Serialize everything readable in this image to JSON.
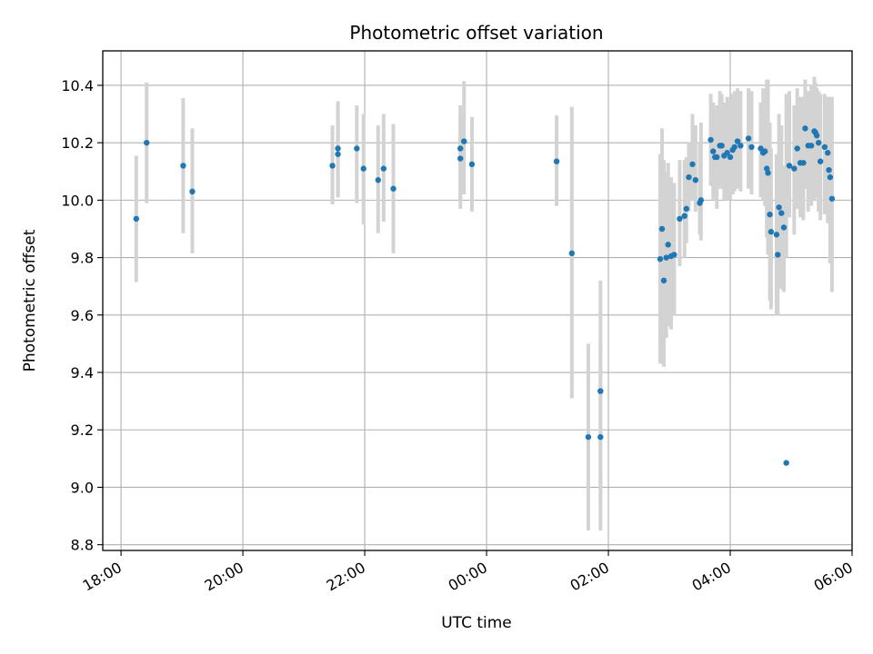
{
  "chart_data": {
    "type": "scatter",
    "title": "Photometric offset variation",
    "xlabel": "UTC time",
    "ylabel": "Photometric offset",
    "x_axis": {
      "kind": "time",
      "range_hours": [
        17.7,
        30.0
      ],
      "ticks_hours": [
        18,
        20,
        22,
        24,
        26,
        28,
        30
      ],
      "tick_labels": [
        "18:00",
        "20:00",
        "22:00",
        "00:00",
        "02:00",
        "04:00",
        "06:00"
      ],
      "tick_label_rotation_deg": 30
    },
    "y_axis": {
      "range": [
        8.78,
        10.52
      ],
      "ticks": [
        8.8,
        9.0,
        9.2,
        9.4,
        9.6,
        9.8,
        10.0,
        10.2,
        10.4
      ],
      "tick_labels": [
        "8.8",
        "9.0",
        "9.2",
        "9.4",
        "9.6",
        "9.8",
        "10.0",
        "10.2",
        "10.4"
      ]
    },
    "grid": true,
    "legend": "none",
    "colors": {
      "marker": "#1f77b4",
      "errorbar": "#d3d3d3",
      "grid": "#b0b0b0"
    },
    "series": [
      {
        "x_hours": [
          18.25,
          18.42,
          19.02,
          19.17,
          21.47,
          21.56,
          21.56,
          21.87,
          21.98,
          22.22,
          22.31,
          22.47,
          23.57,
          23.57,
          23.63,
          23.76,
          25.15,
          25.4,
          25.67,
          25.87,
          25.87,
          26.85,
          26.88,
          26.91,
          26.95,
          26.98,
          27.03,
          27.08,
          27.17,
          27.25,
          27.28,
          27.32,
          27.38,
          27.43,
          27.5,
          27.52,
          27.68,
          27.72,
          27.75,
          27.78,
          27.83,
          27.86,
          27.9,
          27.95,
          28.0,
          28.04,
          28.07,
          28.12,
          28.17,
          28.3,
          28.35,
          28.5,
          28.54,
          28.57,
          28.6,
          28.62,
          28.65,
          28.67,
          28.76,
          28.78,
          28.8,
          28.84,
          28.88,
          28.92,
          28.97,
          29.05,
          29.1,
          29.15,
          29.2,
          29.23,
          29.28,
          29.33,
          29.38,
          29.4,
          29.42,
          29.45,
          29.48,
          29.55,
          29.6,
          29.62,
          29.64,
          29.67
        ],
        "y": [
          9.935,
          10.2,
          10.12,
          10.03,
          10.12,
          10.16,
          10.18,
          10.18,
          10.11,
          10.07,
          10.11,
          10.04,
          10.145,
          10.18,
          10.205,
          10.125,
          10.135,
          9.815,
          9.175,
          9.175,
          9.335,
          9.795,
          9.9,
          9.72,
          9.8,
          9.845,
          9.805,
          9.81,
          9.935,
          9.945,
          9.97,
          10.08,
          10.125,
          10.07,
          9.99,
          10.0,
          10.21,
          10.17,
          10.15,
          10.15,
          10.19,
          10.19,
          10.155,
          10.165,
          10.15,
          10.175,
          10.185,
          10.205,
          10.19,
          10.215,
          10.185,
          10.18,
          10.165,
          10.17,
          10.11,
          10.095,
          9.95,
          9.89,
          9.88,
          9.81,
          9.975,
          9.955,
          9.905,
          9.085,
          10.12,
          10.11,
          10.18,
          10.13,
          10.13,
          10.25,
          10.19,
          10.19,
          10.24,
          10.235,
          10.225,
          10.2,
          10.135,
          10.185,
          10.165,
          10.105,
          10.08,
          10.005
        ],
        "err_low": [
          9.715,
          9.99,
          9.885,
          9.815,
          9.985,
          10.01,
          10.01,
          9.99,
          9.915,
          9.885,
          9.925,
          9.815,
          9.97,
          10.0,
          10.02,
          9.96,
          9.98,
          9.31,
          8.85,
          8.85,
          8.95,
          9.43,
          9.43,
          9.42,
          9.52,
          9.56,
          9.55,
          9.6,
          9.77,
          9.8,
          9.85,
          9.96,
          10.0,
          9.96,
          9.88,
          9.86,
          10.05,
          10.0,
          10.0,
          9.97,
          10.04,
          10.04,
          10.0,
          10.0,
          10.0,
          10.02,
          10.03,
          10.04,
          10.03,
          10.04,
          10.02,
          10.01,
          10.0,
          9.98,
          9.87,
          9.81,
          9.65,
          9.62,
          9.6,
          9.6,
          9.7,
          9.69,
          9.68,
          9.8,
          9.94,
          9.88,
          9.97,
          9.94,
          9.93,
          10.04,
          9.96,
          9.98,
          10.0,
          10.02,
          10.01,
          9.96,
          9.93,
          9.95,
          9.92,
          9.92,
          9.78,
          9.68
        ],
        "err_high": [
          10.155,
          10.41,
          10.355,
          10.25,
          10.26,
          10.31,
          10.345,
          10.33,
          10.3,
          10.26,
          10.3,
          10.265,
          10.3,
          10.33,
          10.415,
          10.29,
          10.295,
          10.325,
          9.5,
          9.5,
          9.72,
          10.16,
          10.25,
          10.14,
          10.1,
          10.13,
          10.08,
          10.06,
          10.14,
          10.14,
          10.15,
          10.2,
          10.3,
          10.26,
          10.2,
          10.27,
          10.37,
          10.34,
          10.3,
          10.33,
          10.38,
          10.37,
          10.34,
          10.36,
          10.35,
          10.37,
          10.38,
          10.39,
          10.38,
          10.39,
          10.38,
          10.34,
          10.39,
          10.35,
          10.42,
          10.42,
          10.27,
          10.18,
          10.16,
          10.07,
          10.3,
          10.26,
          10.12,
          10.37,
          10.38,
          10.33,
          10.39,
          10.36,
          10.36,
          10.42,
          10.38,
          10.4,
          10.43,
          10.41,
          10.39,
          10.38,
          10.37,
          10.37,
          10.36,
          10.28,
          10.36,
          10.36
        ]
      }
    ]
  }
}
